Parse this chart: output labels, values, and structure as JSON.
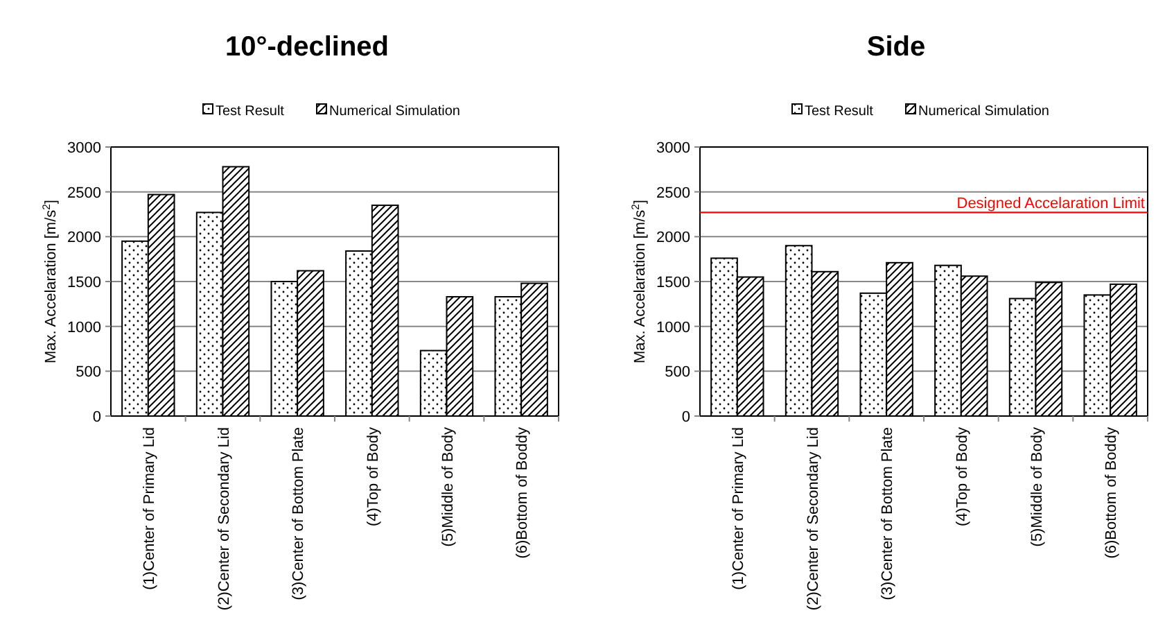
{
  "chart_data": [
    {
      "type": "bar",
      "title": "10°-declined",
      "ylabel": "Max. Accelaration [m/s$^{2}$]",
      "categories": [
        "(1)Center of Primary Lid",
        "(2)Center of Secondary Lid",
        "(3)Center of Bottom Plate",
        "(4)Top of Body",
        "(5)Middle of Body",
        "(6)Bottom of Boddy"
      ],
      "series": [
        {
          "name": "Test Result",
          "color": "#000000",
          "values": [
            1950,
            2270,
            1500,
            1840,
            730,
            1330
          ]
        },
        {
          "name": "Numerical Simulation",
          "color": "#000000",
          "values": [
            2470,
            2780,
            1620,
            2350,
            1330,
            1480
          ]
        }
      ],
      "ylim": [
        0,
        3000
      ],
      "yticks": [
        0,
        500,
        1000,
        1500,
        2000,
        2500,
        3000
      ],
      "grid": "y",
      "legend": "top"
    },
    {
      "type": "bar",
      "title": "Side",
      "ylabel": "Max. Accelaration [m/s$^{2}$]",
      "categories": [
        "(1)Center of Primary Lid",
        "(2)Center of Secondary Lid",
        "(3)Center of Bottom Plate",
        "(4)Top of Body",
        "(5)Middle of Body",
        "(6)Bottom of Boddy"
      ],
      "series": [
        {
          "name": "Test Result",
          "color": "#000000",
          "values": [
            1760,
            1900,
            1370,
            1680,
            1310,
            1350
          ]
        },
        {
          "name": "Numerical Simulation",
          "color": "#000000",
          "values": [
            1550,
            1610,
            1710,
            1560,
            1490,
            1470
          ]
        }
      ],
      "ylim": [
        0,
        3000
      ],
      "yticks": [
        0,
        500,
        1000,
        1500,
        2000,
        2500,
        3000
      ],
      "grid": "y",
      "legend": "top",
      "ref_lines": [
        {
          "axis": "y",
          "value": 2270,
          "label": "Designed Accelaration Limit",
          "color": "#ff0000"
        }
      ]
    }
  ]
}
